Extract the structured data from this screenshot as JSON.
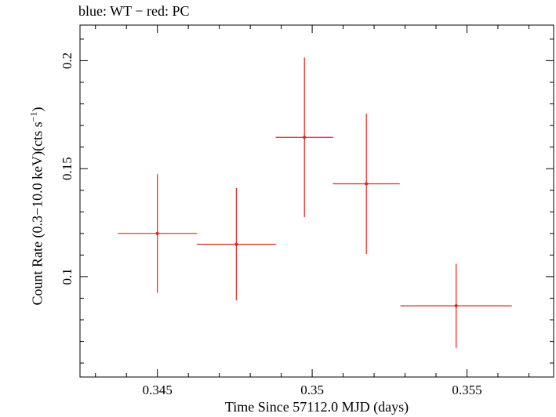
{
  "chart_data": {
    "type": "scatter",
    "title": "blue: WT − red: PC",
    "xlabel": "Time Since 57112.0 MJD (days)",
    "ylabel_main": "Count Rate (0.3−10.0 keV)(cts s",
    "ylabel_sup": "−1",
    "ylabel_end": ")",
    "xlim": [
      0.3425,
      0.3578
    ],
    "ylim": [
      0.0535,
      0.2165
    ],
    "x_ticks": [
      0.345,
      0.35,
      0.355
    ],
    "x_tick_labels": [
      "0.345",
      "0.35",
      "0.355"
    ],
    "y_ticks": [
      0.1,
      0.15,
      0.2
    ],
    "y_tick_labels": [
      "0.1",
      "0.15",
      "0.2"
    ],
    "grid": false,
    "series": [
      {
        "color": "#e8201a",
        "points": [
          {
            "x": 0.345,
            "y": 0.12,
            "xerr": 0.00128,
            "yerr": 0.0275
          },
          {
            "x": 0.34755,
            "y": 0.115,
            "xerr": 0.00128,
            "yerr": 0.026
          },
          {
            "x": 0.34975,
            "y": 0.1645,
            "xerr": 0.00093,
            "yerr": 0.037
          },
          {
            "x": 0.35175,
            "y": 0.143,
            "xerr": 0.00108,
            "yerr": 0.0325
          },
          {
            "x": 0.35465,
            "y": 0.0865,
            "xerr": 0.0018,
            "yerr": 0.0195
          }
        ]
      }
    ]
  }
}
